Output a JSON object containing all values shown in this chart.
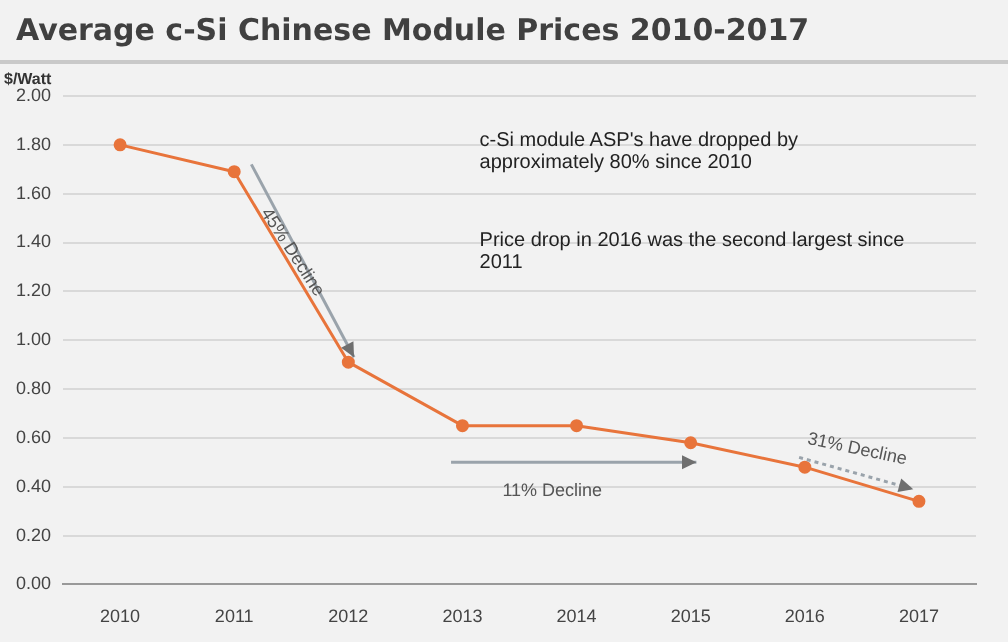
{
  "chart_data": {
    "type": "line",
    "title": "Average c-Si Chinese Module Prices 2010-2017",
    "ylabel": "$/Watt",
    "categories": [
      "2010",
      "2011",
      "2012",
      "2013",
      "2014",
      "2015",
      "2016",
      "2017"
    ],
    "series": [
      {
        "color": "#e8743b",
        "values": [
          1.8,
          1.69,
          0.91,
          0.65,
          0.65,
          0.58,
          0.48,
          0.34
        ]
      }
    ],
    "ylim": [
      0,
      2
    ],
    "yticks": [
      {
        "value": 0,
        "label": "0.00"
      },
      {
        "value": 0.2,
        "label": "0.20"
      },
      {
        "value": 0.4,
        "label": "0.40"
      },
      {
        "value": 0.6,
        "label": "0.60"
      },
      {
        "value": 0.8,
        "label": "0.80"
      },
      {
        "value": 1,
        "label": "1.00"
      },
      {
        "value": 1.2,
        "label": "1.20"
      },
      {
        "value": 1.4,
        "label": "1.40"
      },
      {
        "value": 1.6,
        "label": "1.60"
      },
      {
        "value": 1.8,
        "label": "1.80"
      },
      {
        "value": 2,
        "label": "2.00"
      }
    ],
    "grid": "y",
    "legend": false,
    "marker": "circle",
    "line_style": "solid",
    "annotations": [
      "c-Si module ASP's have dropped by approximately 80% since 2010",
      "Price drop in 2016 was the second largest since 2011",
      "45% Decline",
      "11% Decline",
      "31% Decline"
    ]
  }
}
